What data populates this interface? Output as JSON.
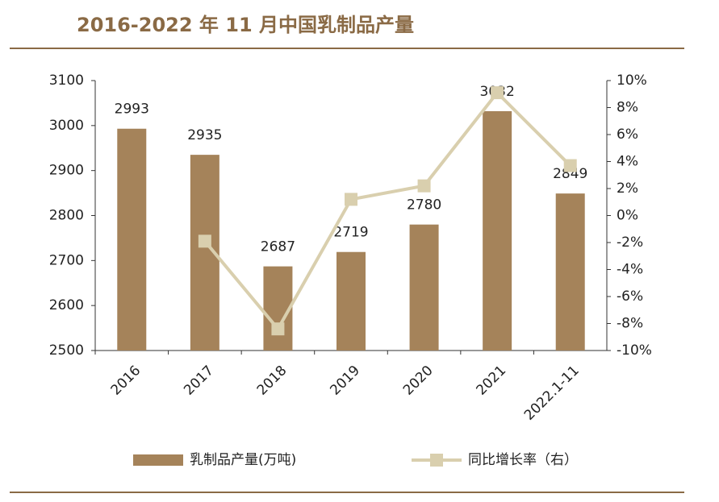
{
  "chart_data": {
    "type": "bar-line",
    "title": "2016-2022 年 11 月中国乳制品产量",
    "categories": [
      "2016",
      "2017",
      "2018",
      "2019",
      "2020",
      "2021",
      "2022.1-11"
    ],
    "series": [
      {
        "name": "乳制品产量(万吨)",
        "type": "bar",
        "color": "#a5835a",
        "values": [
          2993,
          2935,
          2687,
          2719,
          2780,
          3032,
          2849
        ]
      },
      {
        "name": "同比增长率（右）",
        "type": "line",
        "axis": "y2",
        "color": "#d9cfae",
        "values": [
          null,
          -1.9,
          -8.4,
          1.2,
          2.2,
          9.1,
          3.7
        ]
      }
    ],
    "ylim": [
      2500,
      3100
    ],
    "yticks": [
      2500,
      2600,
      2700,
      2800,
      2900,
      3000,
      3100
    ],
    "y2lim": [
      -10,
      10
    ],
    "y2ticks": [
      {
        "value": -10,
        "label": "-10%"
      },
      {
        "value": -8,
        "label": "-8%"
      },
      {
        "value": -6,
        "label": "-6%"
      },
      {
        "value": -4,
        "label": "-4%"
      },
      {
        "value": -2,
        "label": "-2%"
      },
      {
        "value": 0,
        "label": "0%"
      },
      {
        "value": 2,
        "label": "2%"
      },
      {
        "value": 4,
        "label": "4%"
      },
      {
        "value": 6,
        "label": "6%"
      },
      {
        "value": 8,
        "label": "8%"
      },
      {
        "value": 10,
        "label": "10%"
      }
    ],
    "grid": false,
    "legend": "bottom"
  }
}
